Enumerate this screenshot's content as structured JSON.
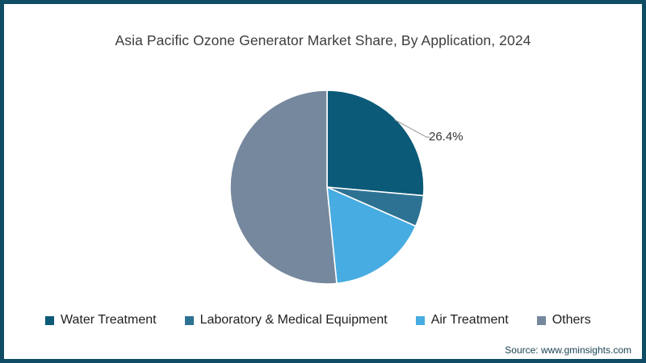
{
  "title": "Asia Pacific Ozone Generator Market Share, By Application, 2024",
  "source": "Source: www.gminsights.com",
  "chart_data": {
    "type": "pie",
    "title": "Asia Pacific Ozone Generator Market Share, By Application, 2024",
    "categories": [
      "Water Treatment",
      "Laboratory & Medical Equipment",
      "Air Treatment",
      "Others"
    ],
    "values": [
      26.4,
      5.2,
      16.8,
      51.6
    ],
    "colors": [
      "#0b5a77",
      "#2e7293",
      "#47ace1",
      "#76889d"
    ],
    "unit": "%",
    "start_angle_deg": 0,
    "direction": "clockwise",
    "legend_position": "bottom",
    "annotations": [
      {
        "category": "Water Treatment",
        "text": "26.4%"
      }
    ]
  },
  "frame": {
    "border_color": "#0e4d64",
    "background": "#ffffff"
  }
}
